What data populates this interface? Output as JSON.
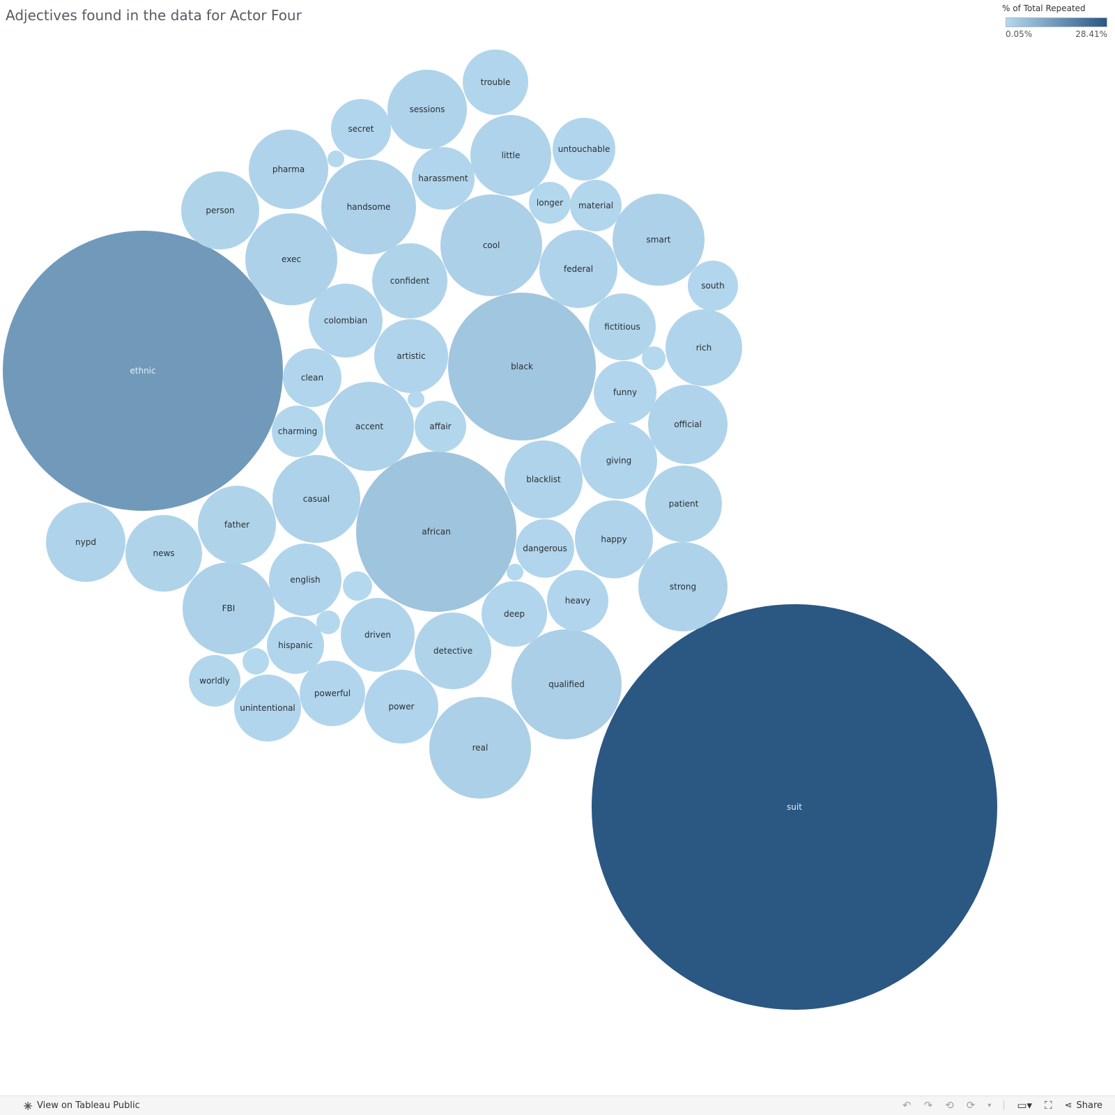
{
  "title": "Adjectives found in the data for Actor Four",
  "legend": {
    "title": "% of Total Repeated",
    "min_label": "0.05%",
    "max_label": "28.41%",
    "color_low": "#b4d8ee",
    "color_high": "#2b5783"
  },
  "chart_data": {
    "type": "bubble",
    "measure": "% of Total Repeated",
    "range": [
      0.05,
      28.41
    ],
    "bubbles": [
      {
        "label": "suit",
        "value": 28.41
      },
      {
        "label": "ethnic",
        "value": 13.9
      },
      {
        "label": "black",
        "value": 3.9
      },
      {
        "label": "african",
        "value": 4.5
      },
      {
        "label": "cool",
        "value": 1.8
      },
      {
        "label": "qualified",
        "value": 2.1
      },
      {
        "label": "handsome",
        "value": 1.6
      },
      {
        "label": "real",
        "value": 1.8
      },
      {
        "label": "smart",
        "value": 1.5
      },
      {
        "label": "strong",
        "value": 1.4
      },
      {
        "label": "accent",
        "value": 1.4
      },
      {
        "label": "exec",
        "value": 1.5
      },
      {
        "label": "FBI",
        "value": 1.5
      },
      {
        "label": "casual",
        "value": 1.4
      },
      {
        "label": "federal",
        "value": 1.1
      },
      {
        "label": "little",
        "value": 1.2
      },
      {
        "label": "sessions",
        "value": 1.1
      },
      {
        "label": "pharma",
        "value": 1.1
      },
      {
        "label": "official",
        "value": 1.1
      },
      {
        "label": "blacklist",
        "value": 1.1
      },
      {
        "label": "happy",
        "value": 1.1
      },
      {
        "label": "detective",
        "value": 1.0
      },
      {
        "label": "nypd",
        "value": 1.1
      },
      {
        "label": "news",
        "value": 1.0
      },
      {
        "label": "father",
        "value": 1.0
      },
      {
        "label": "person",
        "value": 1.0
      },
      {
        "label": "patient",
        "value": 1.0
      },
      {
        "label": "confident",
        "value": 1.0
      },
      {
        "label": "english",
        "value": 0.9
      },
      {
        "label": "colombian",
        "value": 0.9
      },
      {
        "label": "artistic",
        "value": 0.9
      },
      {
        "label": "power",
        "value": 0.9
      },
      {
        "label": "driven",
        "value": 0.9
      },
      {
        "label": "rich",
        "value": 0.9
      },
      {
        "label": "giving",
        "value": 0.9
      },
      {
        "label": "fictitious",
        "value": 0.8
      },
      {
        "label": "trouble",
        "value": 0.7
      },
      {
        "label": "funny",
        "value": 0.7
      },
      {
        "label": "untouchable",
        "value": 0.7
      },
      {
        "label": "harassment",
        "value": 0.7
      },
      {
        "label": "secret",
        "value": 0.6
      },
      {
        "label": "clean",
        "value": 0.6
      },
      {
        "label": "deep",
        "value": 0.7
      },
      {
        "label": "dangerous",
        "value": 0.6
      },
      {
        "label": "heavy",
        "value": 0.6
      },
      {
        "label": "hispanic",
        "value": 0.6
      },
      {
        "label": "unintentional",
        "value": 0.7
      },
      {
        "label": "powerful",
        "value": 0.7
      },
      {
        "label": "charming",
        "value": 0.5
      },
      {
        "label": "affair",
        "value": 0.5
      },
      {
        "label": "worldly",
        "value": 0.5
      },
      {
        "label": "material",
        "value": 0.5
      },
      {
        "label": "south",
        "value": 0.4
      },
      {
        "label": "longer",
        "value": 0.3
      },
      {
        "label": "",
        "value": 0.08
      },
      {
        "label": "",
        "value": 0.07
      },
      {
        "label": "",
        "value": 0.08
      },
      {
        "label": "",
        "value": 0.06
      },
      {
        "label": "",
        "value": 0.05
      },
      {
        "label": "",
        "value": 0.05
      },
      {
        "label": "",
        "value": 0.06
      }
    ]
  },
  "footer": {
    "view_link": "View on Tableau Public",
    "share_label": "Share"
  }
}
